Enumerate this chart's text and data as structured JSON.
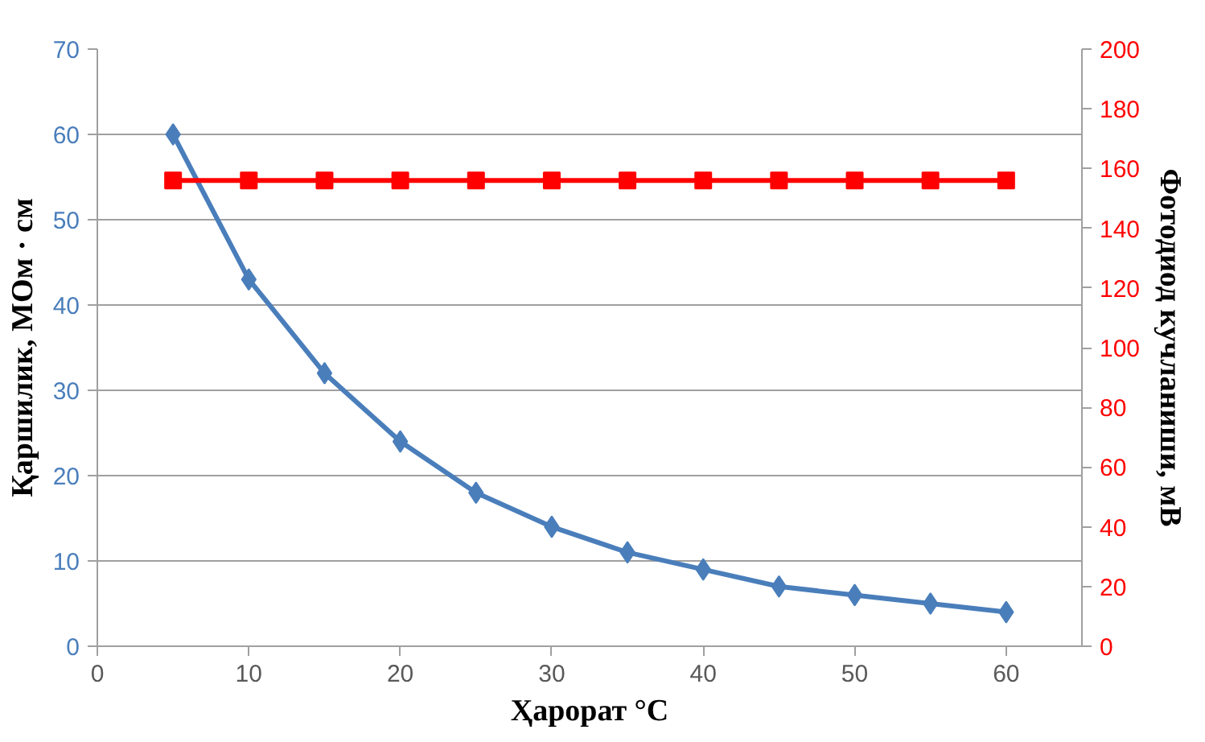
{
  "chart_data": {
    "type": "line",
    "xlabel": "Ҳарорат °C",
    "ylabel": "Қаршилик, МОм · см",
    "y2label": "Фотодиод кучланиши, мВ",
    "x": [
      5,
      10,
      15,
      20,
      25,
      30,
      35,
      40,
      45,
      50,
      55,
      60
    ],
    "series": [
      {
        "color": "#4a7ebb",
        "marker": "diamond",
        "values": [
          60,
          43,
          32,
          24,
          18,
          14,
          11,
          9,
          7,
          6,
          5,
          4
        ]
      },
      {
        "color": "#ff0000",
        "marker": "square",
        "axis": "y2",
        "values": [
          156,
          156,
          156,
          156,
          156,
          156,
          156,
          156,
          156,
          156,
          156,
          156
        ]
      }
    ],
    "xlim": [
      0,
      65
    ],
    "xticks": [
      0,
      10,
      20,
      30,
      40,
      50,
      60
    ],
    "ylim": [
      0,
      70
    ],
    "yticks": [
      0,
      10,
      20,
      30,
      40,
      50,
      60,
      70
    ],
    "y2lim": [
      0,
      200
    ],
    "y2ticks": [
      0,
      20,
      40,
      60,
      80,
      100,
      120,
      140,
      160,
      180,
      200
    ],
    "grid": "y",
    "line_style": "solid"
  }
}
